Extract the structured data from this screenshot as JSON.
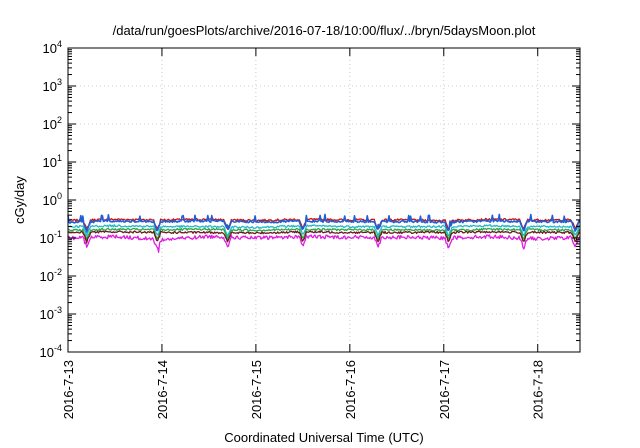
{
  "chart_data": {
    "type": "line",
    "title": "/data/run/goesPlots/archive/2016-07-18/10:00/flux/../bryn/5daysMoon.plot",
    "xlabel": "Coordinated Universal Time (UTC)",
    "ylabel": "cGy/day",
    "yscale": "log",
    "ylim": [
      0.0001,
      10000
    ],
    "xlim": [
      0,
      5.45
    ],
    "x_unit": "days since 2016-07-13 00:00 UTC",
    "xticks": [
      {
        "label": "2016-7-13",
        "value": 0
      },
      {
        "label": "2016-7-14",
        "value": 1
      },
      {
        "label": "2016-7-15",
        "value": 2
      },
      {
        "label": "2016-7-16",
        "value": 3
      },
      {
        "label": "2016-7-17",
        "value": 4
      },
      {
        "label": "2016-7-18",
        "value": 5
      }
    ],
    "yticks": [
      {
        "base": "10",
        "exp": "-4",
        "value": 0.0001
      },
      {
        "base": "10",
        "exp": "-3",
        "value": 0.001
      },
      {
        "base": "10",
        "exp": "-2",
        "value": 0.01
      },
      {
        "base": "10",
        "exp": "-1",
        "value": 0.1
      },
      {
        "base": "10",
        "exp": "0",
        "value": 1
      },
      {
        "base": "10",
        "exp": "1",
        "value": 10
      },
      {
        "base": "10",
        "exp": "2",
        "value": 100
      },
      {
        "base": "10",
        "exp": "3",
        "value": 1000
      },
      {
        "base": "10",
        "exp": "4",
        "value": 10000
      }
    ],
    "grid": true,
    "series": [
      {
        "color": "#cc1111",
        "baseline": 0.3,
        "x": [
          0,
          0.5,
          1,
          1.5,
          2,
          2.5,
          3,
          3.5,
          4,
          4.5,
          5,
          5.45
        ],
        "y": [
          0.29,
          0.31,
          0.3,
          0.31,
          0.29,
          0.31,
          0.3,
          0.3,
          0.29,
          0.31,
          0.3,
          0.3
        ]
      },
      {
        "color": "#1f5fd6",
        "baseline": 0.27,
        "x": [
          0,
          0.5,
          1,
          1.5,
          2,
          2.5,
          3,
          3.5,
          4,
          4.5,
          5,
          5.45
        ],
        "y": [
          0.26,
          0.28,
          0.27,
          0.28,
          0.26,
          0.28,
          0.27,
          0.27,
          0.26,
          0.28,
          0.27,
          0.27
        ]
      },
      {
        "color": "#22b8c8",
        "baseline": 0.2,
        "x": [
          0,
          0.5,
          1,
          1.5,
          2,
          2.5,
          3,
          3.5,
          4,
          4.5,
          5,
          5.45
        ],
        "y": [
          0.2,
          0.21,
          0.2,
          0.2,
          0.19,
          0.21,
          0.2,
          0.2,
          0.2,
          0.21,
          0.2,
          0.2
        ]
      },
      {
        "color": "#2aa84a",
        "baseline": 0.165,
        "x": [
          0,
          0.5,
          1,
          1.5,
          2,
          2.5,
          3,
          3.5,
          4,
          4.5,
          5,
          5.45
        ],
        "y": [
          0.16,
          0.17,
          0.165,
          0.17,
          0.16,
          0.17,
          0.165,
          0.165,
          0.16,
          0.17,
          0.165,
          0.165
        ]
      },
      {
        "color": "#6b1a1a",
        "baseline": 0.14,
        "x": [
          0,
          0.5,
          1,
          1.5,
          2,
          2.5,
          3,
          3.5,
          4,
          4.5,
          5,
          5.45
        ],
        "y": [
          0.14,
          0.145,
          0.14,
          0.14,
          0.135,
          0.145,
          0.14,
          0.14,
          0.14,
          0.145,
          0.14,
          0.14
        ]
      },
      {
        "color": "#e01ce0",
        "baseline": 0.105,
        "x": [
          0,
          0.5,
          1,
          1.5,
          2,
          2.5,
          3,
          3.5,
          4,
          4.5,
          5,
          5.45
        ],
        "y": [
          0.1,
          0.11,
          0.09,
          0.11,
          0.1,
          0.11,
          0.105,
          0.105,
          0.1,
          0.11,
          0.095,
          0.105
        ]
      }
    ],
    "dips": [
      0.2,
      0.95,
      1.7,
      2.5,
      3.3,
      4.05,
      4.85,
      5.4
    ],
    "min_spike": {
      "x": 0.96,
      "y": 0.042
    }
  }
}
